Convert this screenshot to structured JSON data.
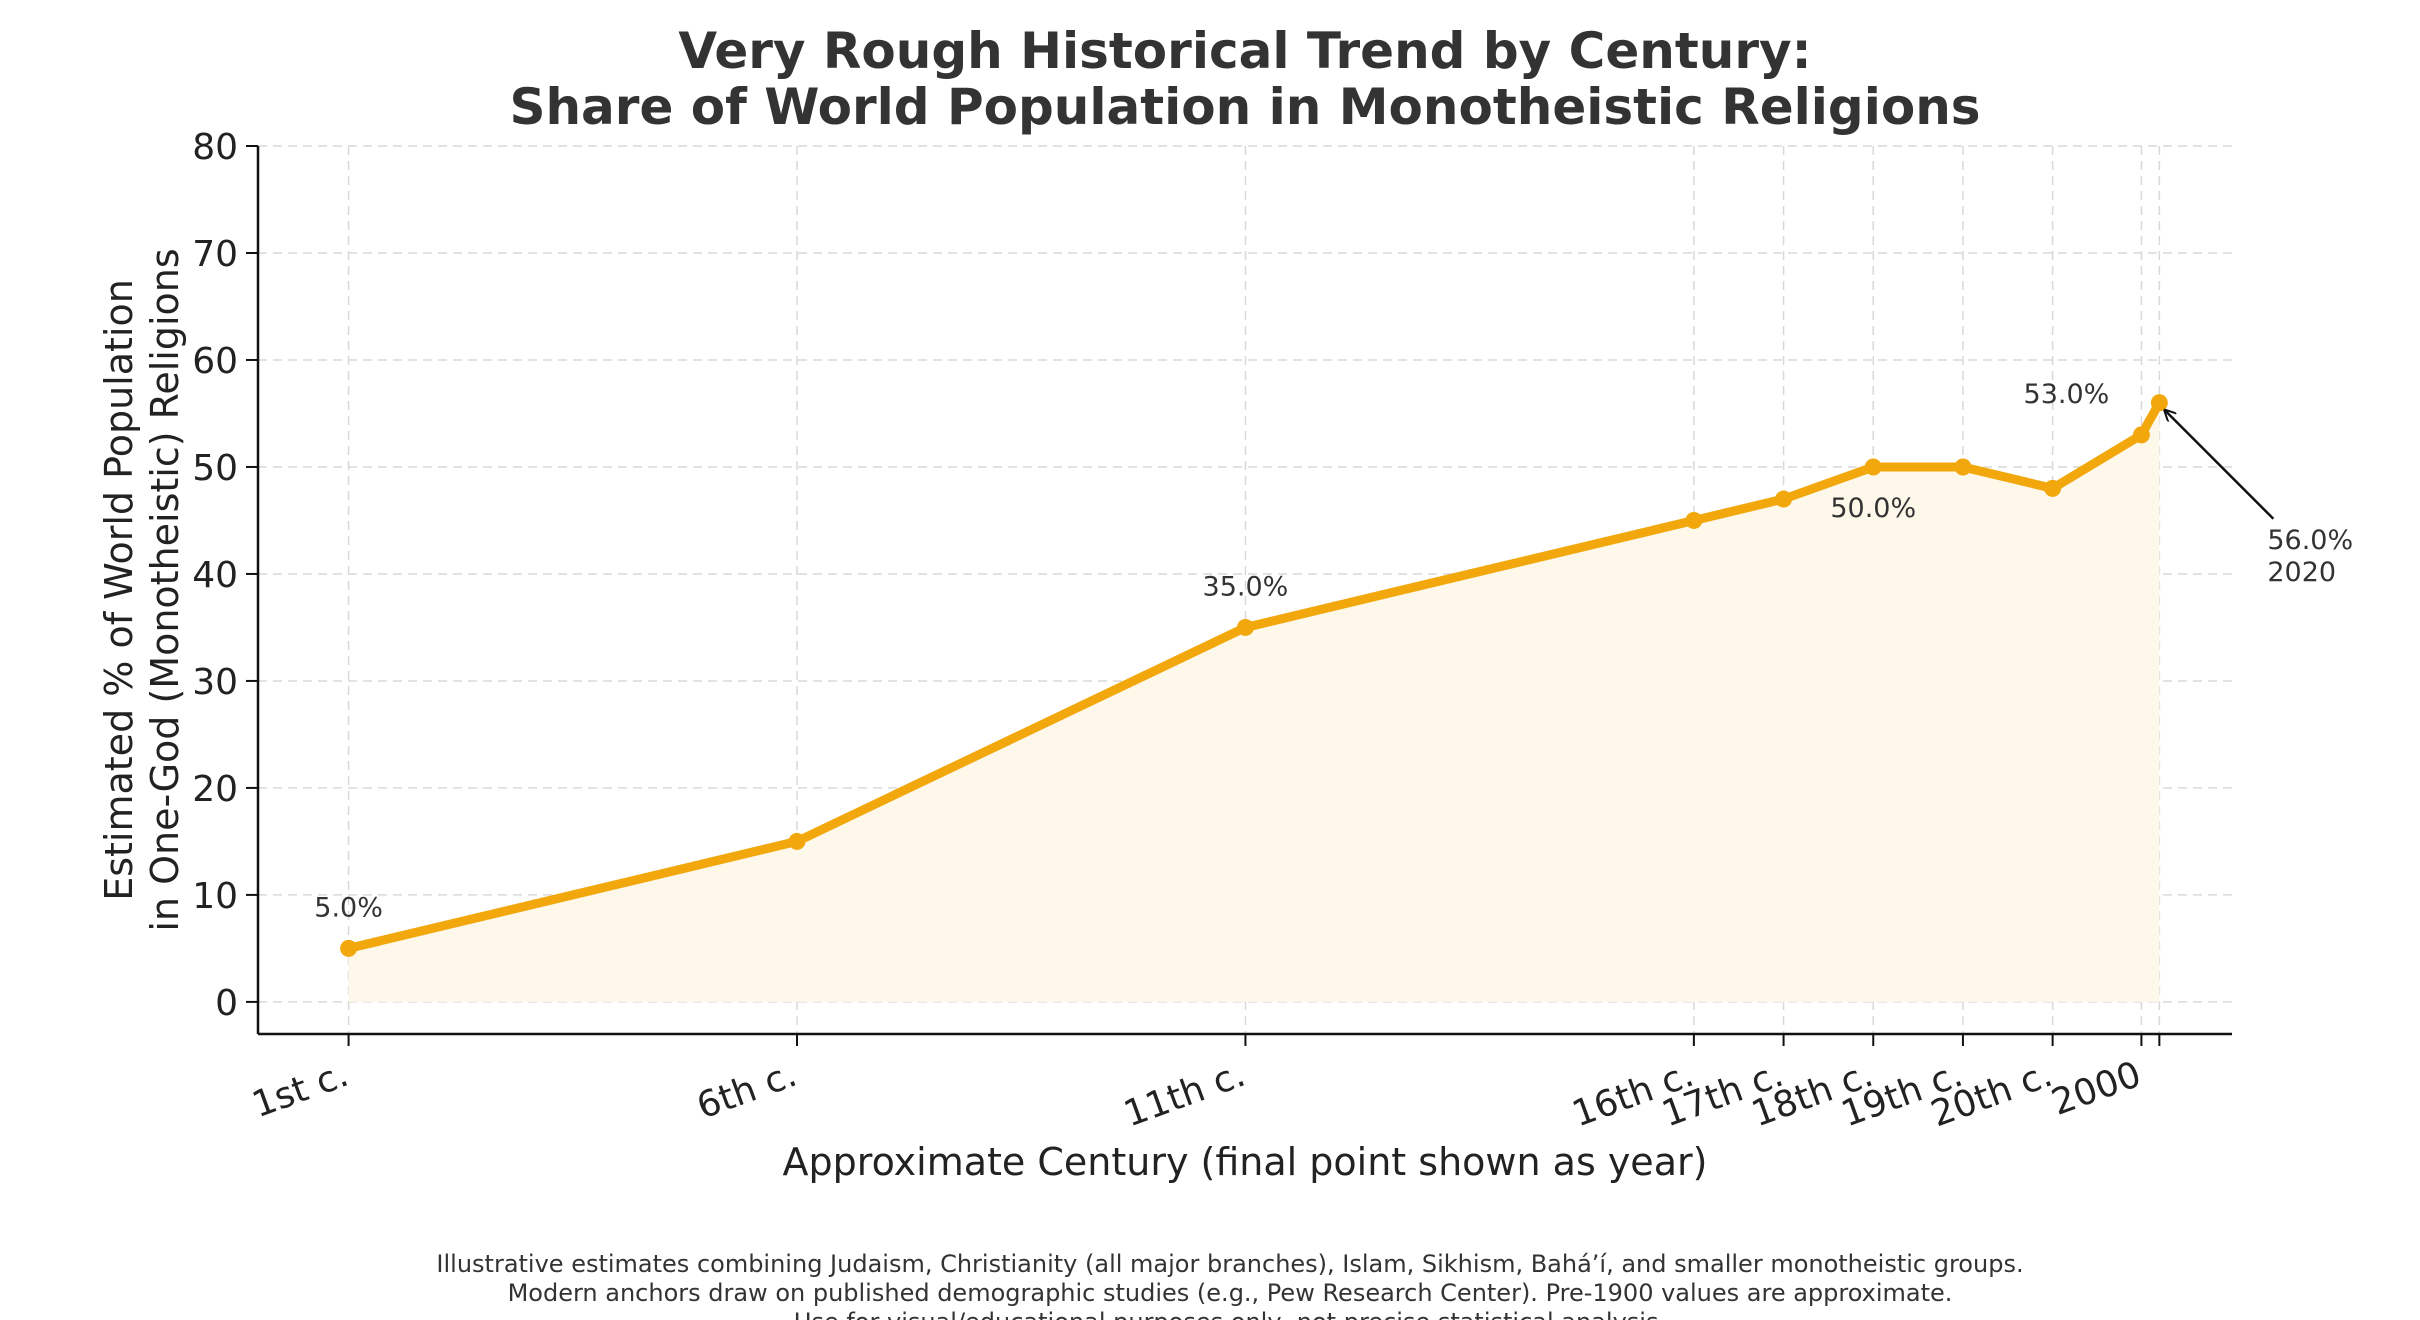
{
  "chart_data": {
    "type": "line",
    "title_lines": [
      "Very Rough Historical Trend by Century:",
      "Share of World Population in Monotheistic Religions"
    ],
    "xlabel": "Approximate Century (final point shown as year)",
    "ylabel_lines": [
      "Estimated % of World Population",
      "in One-God (Monotheistic) Religions"
    ],
    "ylim": [
      -3,
      80
    ],
    "yticks": [
      0,
      10,
      20,
      30,
      40,
      50,
      60,
      70,
      80
    ],
    "grid": true,
    "fill_under": true,
    "color": "#f2a80c",
    "fill_color": "#fdf8ea",
    "points": [
      {
        "x": 1,
        "label": "1st c.",
        "y": 5,
        "tick": true
      },
      {
        "x": 501,
        "label": "6th c.",
        "y": 15,
        "tick": true
      },
      {
        "x": 1001,
        "label": "11th c.",
        "y": 35,
        "tick": true
      },
      {
        "x": 1501,
        "label": "16th c.",
        "y": 45,
        "tick": true
      },
      {
        "x": 1601,
        "label": "17th c.",
        "y": 47,
        "tick": true
      },
      {
        "x": 1701,
        "label": "18th c.",
        "y": 50,
        "tick": true
      },
      {
        "x": 1801,
        "label": "19th c.",
        "y": 50,
        "tick": true
      },
      {
        "x": 1901,
        "label": "20th c.",
        "y": 48,
        "tick": true
      },
      {
        "x": 2000,
        "label": "2000",
        "y": 53,
        "tick": true
      },
      {
        "x": 2020,
        "label": "",
        "y": 56,
        "tick": true
      }
    ],
    "annotations": [
      {
        "x": 1,
        "y": 5,
        "text": "5.0%"
      },
      {
        "x": 1001,
        "y": 35,
        "text": "35.0%"
      },
      {
        "x": 1701,
        "y": 50,
        "text": "50.0%"
      },
      {
        "x": 2000,
        "y": 53,
        "text": "53.0%"
      },
      {
        "x": 2020,
        "y": 56,
        "text": "56.0%",
        "text2": "2020",
        "arrow": true
      }
    ]
  },
  "footnote_lines": [
    "Illustrative estimates combining Judaism, Christianity (all major branches), Islam, Sikhism, Bahá’í, and smaller monotheistic groups.",
    "Modern anchors draw on published demographic studies (e.g., Pew Research Center). Pre-1900 values are approximate.",
    "Use for visual/educational purposes only, not precise statistical analysis."
  ]
}
